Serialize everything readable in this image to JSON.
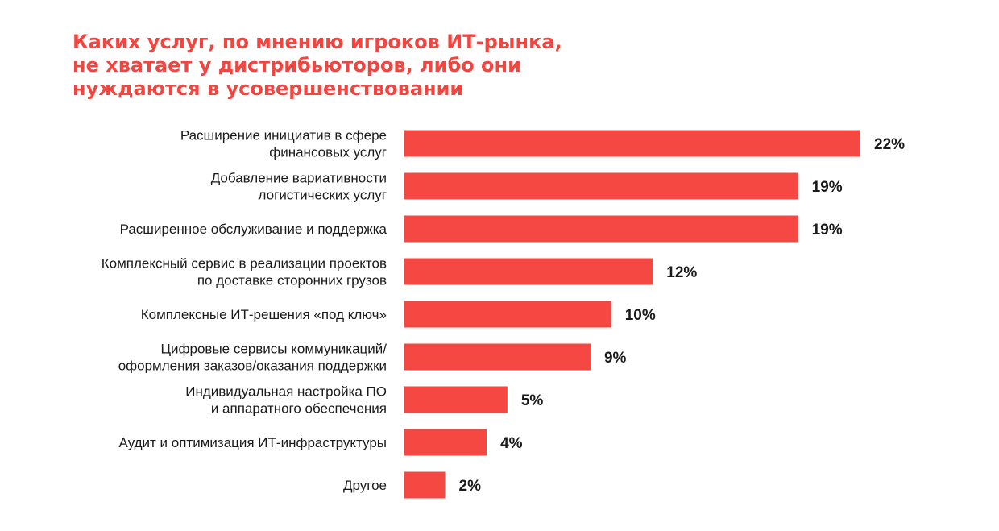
{
  "title_lines": [
    "Каких услуг, по мнению игроков ИТ-рынка,",
    "не хватает у дистрибьюторов, либо они",
    "нуждаются в усовершенствовании"
  ],
  "colors": {
    "accent": "#f3453f",
    "bar": "#f54842",
    "text": "#1a1a1a"
  },
  "chart_data": {
    "type": "bar",
    "orientation": "horizontal",
    "title": "Каких услуг, по мнению игроков ИТ-рынка, не хватает у дистрибьюторов, либо они нуждаются в усовершенствовании",
    "categories": [
      [
        "Расширение инициатив в сфере",
        "финансовых услуг"
      ],
      [
        "Добавление вариативности",
        "логистических услуг"
      ],
      [
        "Расширенное обслуживание и поддержка"
      ],
      [
        "Комплексный сервис в реализации проектов",
        "по доставке сторонних грузов"
      ],
      [
        "Комплексные ИТ-решения «под ключ»"
      ],
      [
        "Цифровые сервисы коммуникаций/",
        "оформления заказов/оказания поддержки"
      ],
      [
        "Индивидуальная настройка ПО",
        "и аппаратного обеспечения"
      ],
      [
        "Аудит и оптимизация ИТ-инфраструктуры"
      ],
      [
        "Другое"
      ]
    ],
    "values": [
      22,
      19,
      19,
      12,
      10,
      9,
      5,
      4,
      2
    ],
    "labels": [
      "22%",
      "19%",
      "19%",
      "12%",
      "10%",
      "9%",
      "5%",
      "4%",
      "2%"
    ],
    "xlim": [
      0,
      22
    ],
    "grid": false,
    "legend": "none"
  }
}
